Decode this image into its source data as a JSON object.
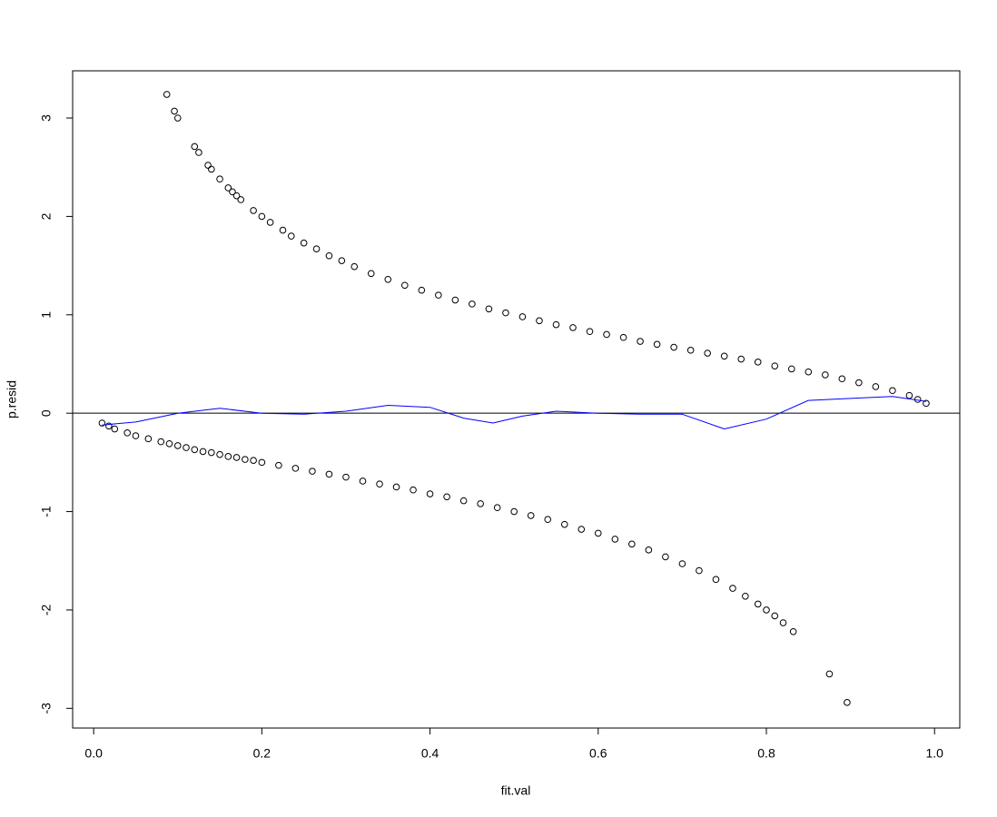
{
  "chart_data": {
    "type": "scatter",
    "x_label": "fit.val",
    "y_label": "p.resid",
    "xlim": [
      -0.025,
      1.03
    ],
    "ylim": [
      -3.2,
      3.48
    ],
    "xticks": [
      {
        "value": 0,
        "label": "0.0"
      },
      0.2,
      0.4,
      0.6,
      0.8,
      {
        "value": 1,
        "label": "1.0"
      }
    ],
    "yticks": [
      -3,
      -2,
      -1,
      0,
      1,
      2,
      3
    ],
    "hline": 0,
    "hline_color": "#000000",
    "series": [
      {
        "color": "#000000",
        "marker": "open-circle",
        "x": [
          0.087,
          0.096,
          0.1,
          0.12,
          0.125,
          0.136,
          0.14,
          0.15,
          0.16,
          0.165,
          0.17,
          0.175,
          0.19,
          0.2,
          0.21,
          0.225,
          0.235,
          0.25,
          0.265,
          0.28,
          0.295,
          0.31,
          0.33,
          0.35,
          0.37,
          0.39,
          0.41,
          0.43,
          0.45,
          0.47,
          0.49,
          0.51,
          0.53,
          0.55,
          0.57,
          0.59,
          0.61,
          0.63,
          0.65,
          0.67,
          0.69,
          0.71,
          0.73,
          0.75,
          0.77,
          0.79,
          0.81,
          0.83,
          0.85,
          0.87,
          0.89,
          0.91,
          0.93,
          0.95,
          0.97,
          0.98,
          0.99,
          0.01,
          0.018,
          0.025,
          0.04,
          0.05,
          0.065,
          0.08,
          0.09,
          0.1,
          0.11,
          0.12,
          0.13,
          0.14,
          0.15,
          0.16,
          0.17,
          0.18,
          0.19,
          0.2,
          0.22,
          0.24,
          0.26,
          0.28,
          0.3,
          0.32,
          0.34,
          0.36,
          0.38,
          0.4,
          0.42,
          0.44,
          0.46,
          0.48,
          0.5,
          0.52,
          0.54,
          0.56,
          0.58,
          0.6,
          0.62,
          0.64,
          0.66,
          0.68,
          0.7,
          0.72,
          0.74,
          0.76,
          0.775,
          0.79,
          0.8,
          0.81,
          0.82,
          0.832,
          0.875,
          0.896
        ],
        "values": [
          3.24,
          3.07,
          3.0,
          2.71,
          2.65,
          2.52,
          2.48,
          2.38,
          2.29,
          2.25,
          2.21,
          2.17,
          2.06,
          2.0,
          1.94,
          1.86,
          1.8,
          1.73,
          1.67,
          1.6,
          1.55,
          1.49,
          1.42,
          1.36,
          1.3,
          1.25,
          1.2,
          1.15,
          1.11,
          1.06,
          1.02,
          0.98,
          0.94,
          0.9,
          0.87,
          0.83,
          0.8,
          0.77,
          0.73,
          0.7,
          0.67,
          0.64,
          0.61,
          0.58,
          0.55,
          0.52,
          0.48,
          0.45,
          0.42,
          0.39,
          0.35,
          0.31,
          0.27,
          0.23,
          0.18,
          0.14,
          0.1,
          -0.1,
          -0.13,
          -0.16,
          -0.2,
          -0.23,
          -0.26,
          -0.29,
          -0.31,
          -0.33,
          -0.35,
          -0.37,
          -0.39,
          -0.4,
          -0.42,
          -0.44,
          -0.45,
          -0.47,
          -0.48,
          -0.5,
          -0.53,
          -0.56,
          -0.59,
          -0.62,
          -0.65,
          -0.69,
          -0.72,
          -0.75,
          -0.78,
          -0.82,
          -0.85,
          -0.89,
          -0.92,
          -0.96,
          -1.0,
          -1.04,
          -1.08,
          -1.13,
          -1.18,
          -1.22,
          -1.28,
          -1.33,
          -1.39,
          -1.46,
          -1.53,
          -1.6,
          -1.69,
          -1.78,
          -1.86,
          -1.94,
          -2.0,
          -2.06,
          -2.13,
          -2.22,
          -2.65,
          -2.94
        ]
      }
    ],
    "lines": [
      {
        "color": "#0000ff",
        "x": [
          0.01,
          0.05,
          0.1,
          0.15,
          0.2,
          0.25,
          0.3,
          0.35,
          0.4,
          0.44,
          0.475,
          0.51,
          0.55,
          0.6,
          0.65,
          0.7,
          0.75,
          0.8,
          0.85,
          0.9,
          0.95,
          0.99
        ],
        "values": [
          -0.12,
          -0.09,
          0.0,
          0.05,
          0.0,
          -0.01,
          0.02,
          0.08,
          0.06,
          -0.05,
          -0.1,
          -0.03,
          0.02,
          0.0,
          -0.01,
          -0.01,
          -0.16,
          -0.06,
          0.13,
          0.15,
          0.17,
          0.12
        ]
      }
    ]
  }
}
